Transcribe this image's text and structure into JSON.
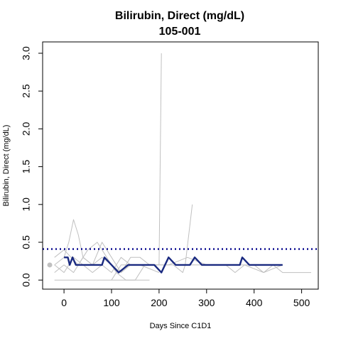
{
  "chart_data": {
    "type": "line",
    "title": "Bilirubin, Direct (mg/dL)",
    "subtitle": "105-001",
    "xlabel": "Days Since C1D1",
    "ylabel": "Bilirubin, Direct (mg/dL)",
    "xlim": [
      -45,
      535
    ],
    "ylim": [
      -0.12,
      3.15
    ],
    "xticks": [
      "0",
      "100",
      "200",
      "300",
      "400",
      "500"
    ],
    "yticks": [
      "0.0",
      "0.5",
      "1.0",
      "1.5",
      "2.0",
      "2.5",
      "3.0"
    ],
    "reference_line": {
      "y": 0.41,
      "color": "#00008B",
      "style": "dotted"
    },
    "colors": {
      "highlight": "#1a2a80",
      "other": "#c0c0c0",
      "marker": "#c0c0c0"
    },
    "baseline_point": {
      "x": -30,
      "y": 0.2
    },
    "series": [
      {
        "highlight": false,
        "points": [
          [
            -20,
            0.2
          ],
          [
            0,
            0.3
          ],
          [
            10,
            0.5
          ],
          [
            20,
            0.8
          ],
          [
            30,
            0.6
          ],
          [
            40,
            0.3
          ],
          [
            60,
            0.2
          ],
          [
            80,
            0.3
          ],
          [
            100,
            0.2
          ],
          [
            120,
            0.1
          ],
          [
            140,
            0.2
          ],
          [
            180,
            0.2
          ],
          [
            200,
            0.2
          ],
          [
            205,
            3.0
          ]
        ]
      },
      {
        "highlight": false,
        "points": [
          [
            -20,
            0.1
          ],
          [
            0,
            0.2
          ],
          [
            20,
            0.1
          ],
          [
            40,
            0.3
          ],
          [
            60,
            0.2
          ],
          [
            80,
            0.5
          ],
          [
            100,
            0.3
          ],
          [
            120,
            0.1
          ],
          [
            140,
            0.3
          ],
          [
            160,
            0.3
          ],
          [
            180,
            0.2
          ],
          [
            200,
            0.2
          ]
        ]
      },
      {
        "highlight": false,
        "points": [
          [
            -20,
            0.3
          ],
          [
            0,
            0.4
          ],
          [
            15,
            0.3
          ],
          [
            30,
            0.2
          ],
          [
            50,
            0.4
          ],
          [
            70,
            0.5
          ],
          [
            90,
            0.3
          ],
          [
            110,
            0.1
          ],
          [
            130,
            0.0
          ],
          [
            150,
            0.0
          ],
          [
            170,
            0.2
          ]
        ]
      },
      {
        "highlight": false,
        "points": [
          [
            -20,
            0.2
          ],
          [
            0,
            0.1
          ],
          [
            20,
            0.3
          ],
          [
            40,
            0.2
          ],
          [
            60,
            0.1
          ],
          [
            80,
            0.2
          ],
          [
            100,
            0.1
          ],
          [
            120,
            0.3
          ],
          [
            140,
            0.2
          ],
          [
            160,
            0.2
          ],
          [
            200,
            0.1
          ]
        ]
      },
      {
        "highlight": false,
        "points": [
          [
            100,
            0.0
          ],
          [
            120,
            0.2
          ],
          [
            160,
            0.2
          ],
          [
            200,
            0.2
          ],
          [
            230,
            0.2
          ],
          [
            250,
            0.1
          ],
          [
            255,
            0.2
          ],
          [
            270,
            1.0
          ]
        ]
      },
      {
        "highlight": false,
        "points": [
          [
            -20,
            0.0
          ],
          [
            60,
            0.0
          ],
          [
            120,
            0.0
          ],
          [
            180,
            0.0
          ]
        ]
      },
      {
        "highlight": false,
        "points": [
          [
            260,
            0.2
          ],
          [
            300,
            0.2
          ],
          [
            340,
            0.2
          ],
          [
            360,
            0.1
          ],
          [
            380,
            0.2
          ],
          [
            400,
            0.2
          ],
          [
            420,
            0.1
          ],
          [
            440,
            0.2
          ],
          [
            460,
            0.1
          ],
          [
            480,
            0.1
          ],
          [
            520,
            0.1
          ]
        ]
      },
      {
        "highlight": false,
        "points": [
          [
            180,
            0.2
          ],
          [
            220,
            0.2
          ],
          [
            260,
            0.3
          ],
          [
            300,
            0.2
          ],
          [
            340,
            0.2
          ],
          [
            380,
            0.2
          ],
          [
            420,
            0.1
          ],
          [
            460,
            0.2
          ]
        ]
      },
      {
        "highlight": true,
        "points": [
          [
            0,
            0.3
          ],
          [
            8,
            0.3
          ],
          [
            12,
            0.2
          ],
          [
            18,
            0.3
          ],
          [
            25,
            0.2
          ],
          [
            40,
            0.2
          ],
          [
            80,
            0.2
          ],
          [
            85,
            0.3
          ],
          [
            100,
            0.2
          ],
          [
            115,
            0.1
          ],
          [
            135,
            0.2
          ],
          [
            190,
            0.2
          ],
          [
            205,
            0.1
          ],
          [
            220,
            0.3
          ],
          [
            235,
            0.2
          ],
          [
            265,
            0.2
          ],
          [
            275,
            0.3
          ],
          [
            290,
            0.2
          ],
          [
            370,
            0.2
          ],
          [
            375,
            0.3
          ],
          [
            390,
            0.2
          ],
          [
            460,
            0.2
          ]
        ]
      }
    ]
  }
}
